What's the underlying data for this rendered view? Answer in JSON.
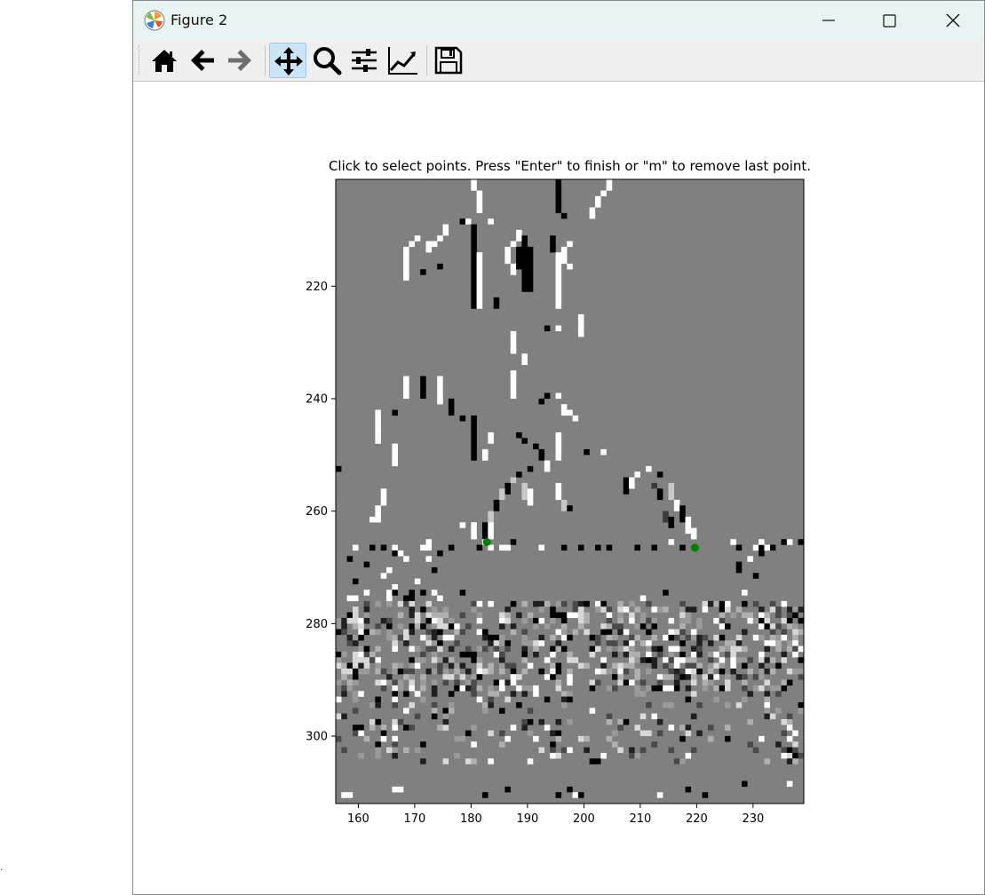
{
  "stray_mark": ".",
  "window": {
    "title": "Figure 2",
    "controls": {
      "minimize": "minimize-icon",
      "maximize": "maximize-icon",
      "close": "close-icon"
    }
  },
  "toolbar": {
    "buttons": [
      {
        "icon": "home-icon",
        "tooltip": "Home"
      },
      {
        "icon": "back-arrow-icon",
        "tooltip": "Back"
      },
      {
        "icon": "forward-arrow-icon",
        "tooltip": "Forward",
        "disabled": true
      },
      {
        "icon": "pan-icon",
        "tooltip": "Pan",
        "active": true
      },
      {
        "icon": "zoom-icon",
        "tooltip": "Zoom"
      },
      {
        "icon": "subplots-config-icon",
        "tooltip": "Subplots"
      },
      {
        "icon": "edit-axis-icon",
        "tooltip": "Customize"
      },
      {
        "icon": "save-icon",
        "tooltip": "Save"
      }
    ]
  },
  "chart_data": {
    "type": "heatmap",
    "title": "Click to select points. Press \"Enter\" to finish or \"m\" to remove last point.",
    "colormap": "gray",
    "xlim": [
      156,
      239
    ],
    "ylim": [
      312,
      201
    ],
    "xticks": [
      160,
      170,
      180,
      190,
      200,
      210,
      220,
      230
    ],
    "yticks": [
      220,
      240,
      260,
      280,
      300
    ],
    "background_value": "mid-gray",
    "selected_points": [
      {
        "x": 182.3,
        "y": 265.0,
        "color": "#008000"
      },
      {
        "x": 219.2,
        "y": 266.0,
        "color": "#008000"
      }
    ],
    "features": [
      {
        "label": "vertical edge strokes",
        "x_range": [
          162,
          205
        ],
        "y_range": [
          201,
          252
        ]
      },
      {
        "label": "arch structure",
        "x_range": [
          181,
          222
        ],
        "y_range": [
          250,
          266
        ]
      },
      {
        "label": "horizon line",
        "x_range": [
          156,
          239
        ],
        "y_range": [
          262,
          268
        ]
      },
      {
        "label": "dense noise band",
        "x_range": [
          156,
          239
        ],
        "y_range": [
          276,
          292
        ]
      },
      {
        "label": "sparse noise band",
        "x_range": [
          156,
          239
        ],
        "y_range": [
          292,
          304
        ]
      },
      {
        "label": "bottom edge row",
        "x_range": [
          156,
          239
        ],
        "y_range": [
          308,
          312
        ]
      }
    ]
  }
}
